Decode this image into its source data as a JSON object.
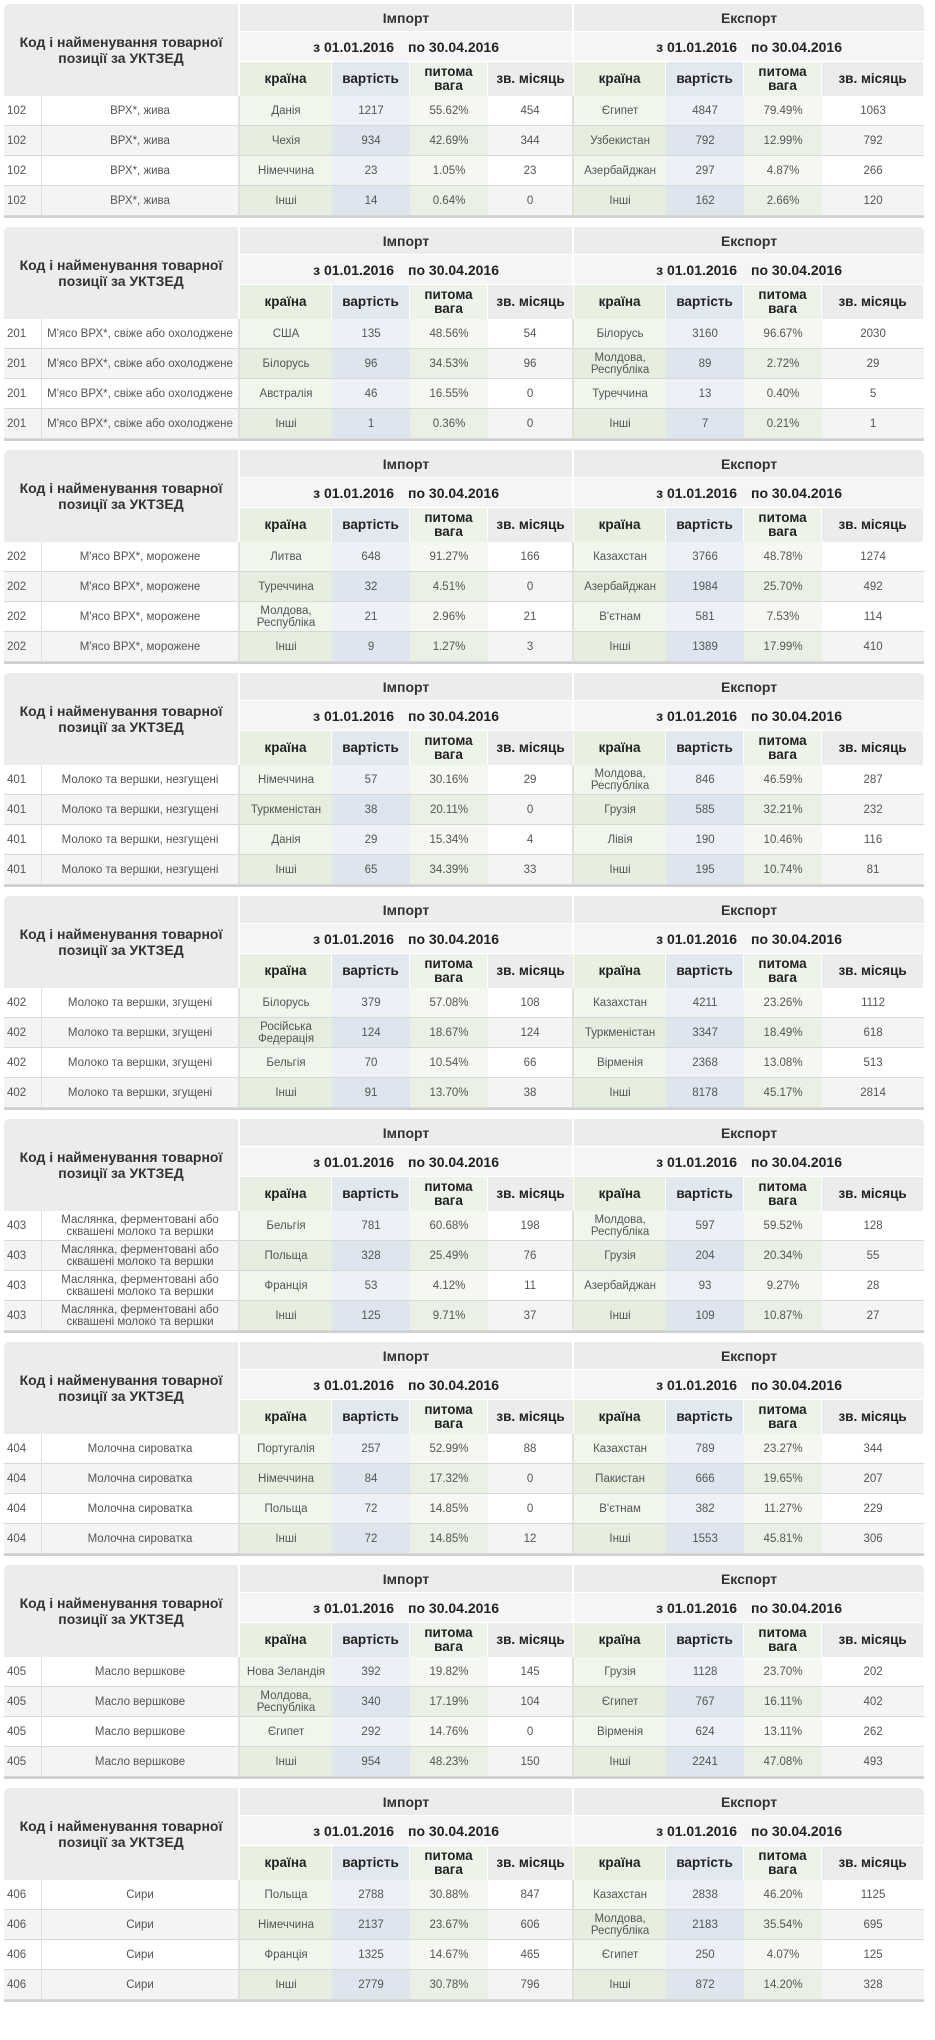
{
  "labels": {
    "title": "Код і найменування товарної позиції за УКТЗЕД",
    "import": "Імпорт",
    "export": "Експорт",
    "period_from": "з 01.01.2016",
    "period_to": "по 30.04.2016",
    "col_country": "країна",
    "col_value": "вартість",
    "col_share": "питома вага",
    "col_month": "зв. місяць"
  },
  "sections": [
    {
      "code": "102",
      "name": "ВРХ*, жива",
      "rows": [
        {
          "imp": [
            "Данія",
            "1217",
            "55.62%",
            "454"
          ],
          "exp": [
            "Єгипет",
            "4847",
            "79.49%",
            "1063"
          ]
        },
        {
          "imp": [
            "Чехія",
            "934",
            "42.69%",
            "344"
          ],
          "exp": [
            "Узбекистан",
            "792",
            "12.99%",
            "792"
          ]
        },
        {
          "imp": [
            "Німеччина",
            "23",
            "1.05%",
            "23"
          ],
          "exp": [
            "Азербайджан",
            "297",
            "4.87%",
            "266"
          ]
        },
        {
          "imp": [
            "Інші",
            "14",
            "0.64%",
            "0"
          ],
          "exp": [
            "Інші",
            "162",
            "2.66%",
            "120"
          ]
        }
      ]
    },
    {
      "code": "201",
      "name": "М'ясо ВРХ*, свіже або охолоджене",
      "rows": [
        {
          "imp": [
            "США",
            "135",
            "48.56%",
            "54"
          ],
          "exp": [
            "Білорусь",
            "3160",
            "96.67%",
            "2030"
          ]
        },
        {
          "imp": [
            "Білорусь",
            "96",
            "34.53%",
            "96"
          ],
          "exp": [
            "Молдова, Республіка",
            "89",
            "2.72%",
            "29"
          ]
        },
        {
          "imp": [
            "Австралія",
            "46",
            "16.55%",
            "0"
          ],
          "exp": [
            "Туреччина",
            "13",
            "0.40%",
            "5"
          ]
        },
        {
          "imp": [
            "Інші",
            "1",
            "0.36%",
            "0"
          ],
          "exp": [
            "Інші",
            "7",
            "0.21%",
            "1"
          ]
        }
      ]
    },
    {
      "code": "202",
      "name": "М'ясо ВРХ*, морожене",
      "rows": [
        {
          "imp": [
            "Литва",
            "648",
            "91.27%",
            "166"
          ],
          "exp": [
            "Казахстан",
            "3766",
            "48.78%",
            "1274"
          ]
        },
        {
          "imp": [
            "Туреччина",
            "32",
            "4.51%",
            "0"
          ],
          "exp": [
            "Азербайджан",
            "1984",
            "25.70%",
            "492"
          ]
        },
        {
          "imp": [
            "Молдова, Республіка",
            "21",
            "2.96%",
            "21"
          ],
          "exp": [
            "В'єтнам",
            "581",
            "7.53%",
            "114"
          ]
        },
        {
          "imp": [
            "Інші",
            "9",
            "1.27%",
            "3"
          ],
          "exp": [
            "Інші",
            "1389",
            "17.99%",
            "410"
          ]
        }
      ]
    },
    {
      "code": "401",
      "name": "Молоко та вершки, незгущені",
      "rows": [
        {
          "imp": [
            "Німеччина",
            "57",
            "30.16%",
            "29"
          ],
          "exp": [
            "Молдова, Республіка",
            "846",
            "46.59%",
            "287"
          ]
        },
        {
          "imp": [
            "Туркменістан",
            "38",
            "20.11%",
            "0"
          ],
          "exp": [
            "Грузія",
            "585",
            "32.21%",
            "232"
          ]
        },
        {
          "imp": [
            "Данія",
            "29",
            "15.34%",
            "4"
          ],
          "exp": [
            "Лівія",
            "190",
            "10.46%",
            "116"
          ]
        },
        {
          "imp": [
            "Інші",
            "65",
            "34.39%",
            "33"
          ],
          "exp": [
            "Інші",
            "195",
            "10.74%",
            "81"
          ]
        }
      ]
    },
    {
      "code": "402",
      "name": "Молоко та вершки, згущені",
      "rows": [
        {
          "imp": [
            "Білорусь",
            "379",
            "57.08%",
            "108"
          ],
          "exp": [
            "Казахстан",
            "4211",
            "23.26%",
            "1112"
          ]
        },
        {
          "imp": [
            "Російська Федерація",
            "124",
            "18.67%",
            "124"
          ],
          "exp": [
            "Туркменістан",
            "3347",
            "18.49%",
            "618"
          ]
        },
        {
          "imp": [
            "Бельгія",
            "70",
            "10.54%",
            "66"
          ],
          "exp": [
            "Вірменія",
            "2368",
            "13.08%",
            "513"
          ]
        },
        {
          "imp": [
            "Інші",
            "91",
            "13.70%",
            "38"
          ],
          "exp": [
            "Інші",
            "8178",
            "45.17%",
            "2814"
          ]
        }
      ]
    },
    {
      "code": "403",
      "name": "Маслянка, ферментовані або сквашені молоко та вершки",
      "rows": [
        {
          "imp": [
            "Бельгія",
            "781",
            "60.68%",
            "198"
          ],
          "exp": [
            "Молдова, Республіка",
            "597",
            "59.52%",
            "128"
          ]
        },
        {
          "imp": [
            "Польща",
            "328",
            "25.49%",
            "76"
          ],
          "exp": [
            "Грузія",
            "204",
            "20.34%",
            "55"
          ]
        },
        {
          "imp": [
            "Франція",
            "53",
            "4.12%",
            "11"
          ],
          "exp": [
            "Азербайджан",
            "93",
            "9.27%",
            "28"
          ]
        },
        {
          "imp": [
            "Інші",
            "125",
            "9.71%",
            "37"
          ],
          "exp": [
            "Інші",
            "109",
            "10.87%",
            "27"
          ]
        }
      ]
    },
    {
      "code": "404",
      "name": "Молочна сироватка",
      "rows": [
        {
          "imp": [
            "Португалія",
            "257",
            "52.99%",
            "88"
          ],
          "exp": [
            "Казахстан",
            "789",
            "23.27%",
            "344"
          ]
        },
        {
          "imp": [
            "Німеччина",
            "84",
            "17.32%",
            "0"
          ],
          "exp": [
            "Пакистан",
            "666",
            "19.65%",
            "207"
          ]
        },
        {
          "imp": [
            "Польща",
            "72",
            "14.85%",
            "0"
          ],
          "exp": [
            "В'єтнам",
            "382",
            "11.27%",
            "229"
          ]
        },
        {
          "imp": [
            "Інші",
            "72",
            "14.85%",
            "12"
          ],
          "exp": [
            "Інші",
            "1553",
            "45.81%",
            "306"
          ]
        }
      ]
    },
    {
      "code": "405",
      "name": "Масло вершкове",
      "rows": [
        {
          "imp": [
            "Нова Зеландія",
            "392",
            "19.82%",
            "145"
          ],
          "exp": [
            "Грузія",
            "1128",
            "23.70%",
            "202"
          ]
        },
        {
          "imp": [
            "Молдова, Республіка",
            "340",
            "17.19%",
            "104"
          ],
          "exp": [
            "Єгипет",
            "767",
            "16.11%",
            "402"
          ]
        },
        {
          "imp": [
            "Єгипет",
            "292",
            "14.76%",
            "0"
          ],
          "exp": [
            "Вірменія",
            "624",
            "13.11%",
            "262"
          ]
        },
        {
          "imp": [
            "Інші",
            "954",
            "48.23%",
            "150"
          ],
          "exp": [
            "Інші",
            "2241",
            "47.08%",
            "493"
          ]
        }
      ]
    },
    {
      "code": "406",
      "name": "Сири",
      "rows": [
        {
          "imp": [
            "Польща",
            "2788",
            "30.88%",
            "847"
          ],
          "exp": [
            "Казахстан",
            "2838",
            "46.20%",
            "1125"
          ]
        },
        {
          "imp": [
            "Німеччина",
            "2137",
            "23.67%",
            "606"
          ],
          "exp": [
            "Молдова, Республіка",
            "2183",
            "35.54%",
            "695"
          ]
        },
        {
          "imp": [
            "Франція",
            "1325",
            "14.67%",
            "465"
          ],
          "exp": [
            "Єгипет",
            "250",
            "4.07%",
            "125"
          ]
        },
        {
          "imp": [
            "Інші",
            "2779",
            "30.78%",
            "796"
          ],
          "exp": [
            "Інші",
            "872",
            "14.20%",
            "328"
          ]
        }
      ]
    }
  ]
}
